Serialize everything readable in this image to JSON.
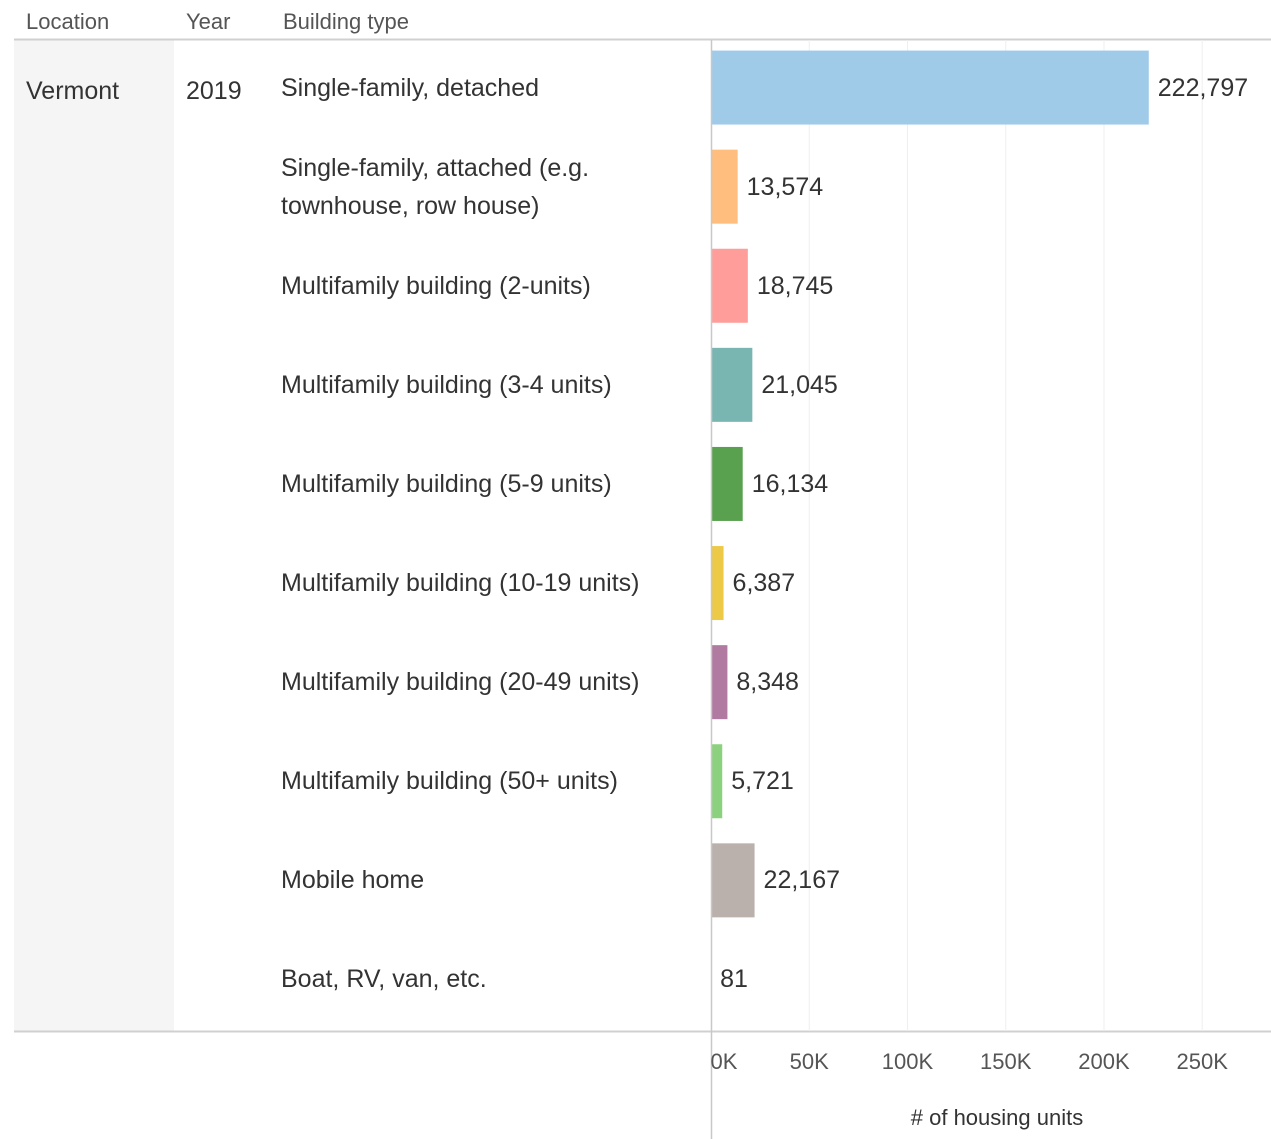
{
  "chart_data": {
    "type": "bar",
    "columns": [
      "Location",
      "Year",
      "Building type"
    ],
    "location": "Vermont",
    "year": "2019",
    "categories": [
      "Single-family, detached",
      "Single-family, attached (e.g. townhouse, row house)",
      "Multifamily building (2-units)",
      "Multifamily building (3-4 units)",
      "Multifamily building (5-9 units)",
      "Multifamily building (10-19 units)",
      "Multifamily building (20-49 units)",
      "Multifamily building (50+ units)",
      "Mobile home",
      "Boat, RV, van, etc."
    ],
    "values": [
      222797,
      13574,
      18745,
      21045,
      16134,
      6387,
      8348,
      5721,
      22167,
      81
    ],
    "value_labels": [
      "222,797",
      "13,574",
      "18,745",
      "21,045",
      "16,134",
      "6,387",
      "8,348",
      "5,721",
      "22,167",
      "81"
    ],
    "colors": [
      "#9fcbe9",
      "#ffbe7d",
      "#ff9d9a",
      "#79b6b2",
      "#59a14f",
      "#edc948",
      "#b07aa1",
      "#8cd17d",
      "#bab0ac",
      "#d4a6c8"
    ],
    "xlim": [
      0,
      285000
    ],
    "xticks": [
      {
        "value": 0,
        "label": "0K"
      },
      {
        "value": 50000,
        "label": "50K"
      },
      {
        "value": 100000,
        "label": "100K"
      },
      {
        "value": 150000,
        "label": "150K"
      },
      {
        "value": 200000,
        "label": "200K"
      },
      {
        "value": 250000,
        "label": "250K"
      }
    ],
    "xlabel": "# of housing units",
    "grid": true
  }
}
